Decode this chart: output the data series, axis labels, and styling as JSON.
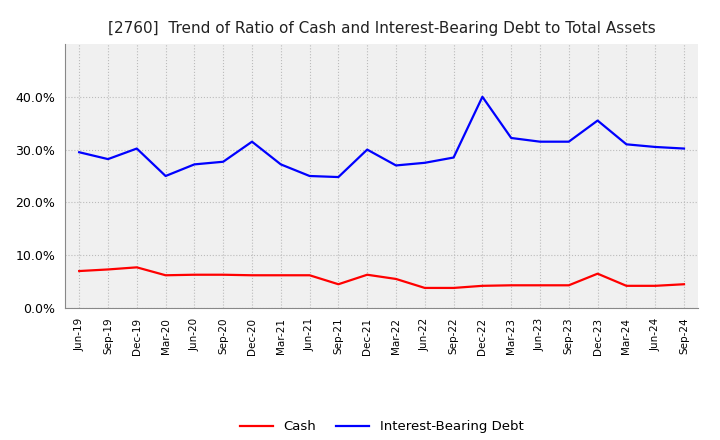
{
  "title": "[2760]  Trend of Ratio of Cash and Interest-Bearing Debt to Total Assets",
  "labels": [
    "Jun-19",
    "Sep-19",
    "Dec-19",
    "Mar-20",
    "Jun-20",
    "Sep-20",
    "Dec-20",
    "Mar-21",
    "Jun-21",
    "Sep-21",
    "Dec-21",
    "Mar-22",
    "Jun-22",
    "Sep-22",
    "Dec-22",
    "Mar-23",
    "Jun-23",
    "Sep-23",
    "Dec-23",
    "Mar-24",
    "Jun-24",
    "Sep-24"
  ],
  "cash": [
    0.07,
    0.073,
    0.077,
    0.062,
    0.063,
    0.063,
    0.062,
    0.062,
    0.062,
    0.045,
    0.063,
    0.055,
    0.038,
    0.038,
    0.042,
    0.043,
    0.043,
    0.043,
    0.065,
    0.042,
    0.042,
    0.045
  ],
  "debt": [
    0.295,
    0.282,
    0.302,
    0.25,
    0.272,
    0.277,
    0.315,
    0.272,
    0.25,
    0.248,
    0.3,
    0.27,
    0.275,
    0.285,
    0.4,
    0.322,
    0.315,
    0.315,
    0.355,
    0.31,
    0.305,
    0.302
  ],
  "cash_color": "#FF0000",
  "debt_color": "#0000FF",
  "background_color": "#FFFFFF",
  "plot_bg_color": "#F0F0F0",
  "grid_color": "#BBBBBB",
  "title_fontsize": 11,
  "legend_labels": [
    "Cash",
    "Interest-Bearing Debt"
  ],
  "ylim": [
    0.0,
    0.5
  ],
  "yticks": [
    0.0,
    0.1,
    0.2,
    0.3,
    0.4
  ],
  "line_width": 1.6
}
